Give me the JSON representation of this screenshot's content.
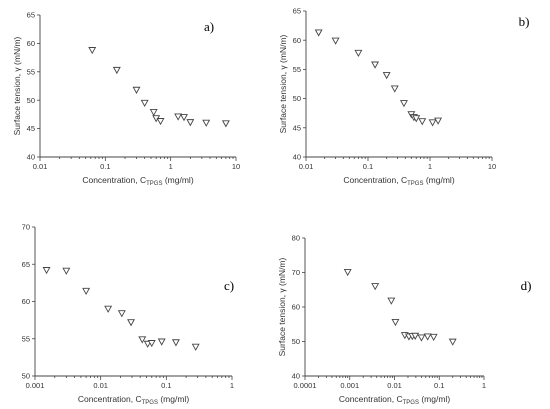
{
  "chart_data": [
    {
      "type": "scatter",
      "panel_label": "a)",
      "xlabel_main": "Concentration, C",
      "xlabel_sub": "TPGS",
      "xlabel_unit": " (mg/ml)",
      "ylabel": "Surface tension, γ (mN/m)",
      "xscale": "log",
      "xlim": [
        0.01,
        10
      ],
      "ylim": [
        40,
        65
      ],
      "xticks": [
        0.01,
        0.1,
        1,
        10
      ],
      "xtick_labels": [
        "0.01",
        "0.1",
        "1",
        "10"
      ],
      "yticks": [
        40,
        45,
        50,
        55,
        60,
        65
      ],
      "ytick_labels": [
        "40",
        "45",
        "50",
        "55",
        "60",
        "65"
      ],
      "x": [
        0.063,
        0.15,
        0.3,
        0.4,
        0.55,
        0.6,
        0.7,
        1.3,
        1.6,
        2.0,
        3.5,
        7.0
      ],
      "y": [
        58.8,
        55.3,
        51.8,
        49.5,
        47.9,
        46.8,
        46.3,
        47.1,
        47.0,
        46.1,
        46.0,
        45.9
      ]
    },
    {
      "type": "scatter",
      "panel_label": "b)",
      "xlabel_main": "Concentration, C",
      "xlabel_sub": "TPGS",
      "xlabel_unit": " (mg/ml)",
      "ylabel": "Surface tension, γ (mN/m)",
      "xscale": "log",
      "xlim": [
        0.01,
        10
      ],
      "ylim": [
        40,
        65
      ],
      "xticks": [
        0.01,
        0.1,
        1,
        10
      ],
      "xtick_labels": [
        "0.01",
        "0.1",
        "1",
        "10"
      ],
      "yticks": [
        40,
        45,
        50,
        55,
        60,
        65
      ],
      "ytick_labels": [
        "40",
        "45",
        "50",
        "55",
        "60",
        "65"
      ],
      "x": [
        0.016,
        0.03,
        0.07,
        0.13,
        0.2,
        0.27,
        0.38,
        0.5,
        0.55,
        0.6,
        0.75,
        1.1,
        1.35
      ],
      "y": [
        61.3,
        59.9,
        57.8,
        55.8,
        54.0,
        51.7,
        49.2,
        47.3,
        46.8,
        46.6,
        46.1,
        45.9,
        46.2
      ]
    },
    {
      "type": "scatter",
      "panel_label": "c)",
      "xlabel_main": "Concentration, C",
      "xlabel_sub": "TPGS",
      "xlabel_unit": " (mg/ml)",
      "ylabel": "",
      "xscale": "log",
      "xlim": [
        0.001,
        1
      ],
      "ylim": [
        50,
        70
      ],
      "xticks": [
        0.001,
        0.01,
        0.1,
        1
      ],
      "xtick_labels": [
        "0.001",
        "0.01",
        "0.1",
        "1"
      ],
      "yticks": [
        50,
        55,
        60,
        65,
        70
      ],
      "ytick_labels": [
        "50",
        "55",
        "60",
        "65",
        "70"
      ],
      "x": [
        0.0015,
        0.003,
        0.006,
        0.013,
        0.021,
        0.029,
        0.043,
        0.052,
        0.06,
        0.085,
        0.14,
        0.28
      ],
      "y": [
        64.2,
        64.1,
        61.4,
        59.0,
        58.4,
        57.2,
        54.9,
        54.3,
        54.4,
        54.6,
        54.5,
        53.9
      ]
    },
    {
      "type": "scatter",
      "panel_label": "d)",
      "xlabel_main": "Concentration, C",
      "xlabel_sub": "TPGS",
      "xlabel_unit": " (mg/ml)",
      "ylabel": "Surface tension, γ (mN/m)",
      "xscale": "log",
      "xlim": [
        0.0001,
        1
      ],
      "ylim": [
        40,
        80
      ],
      "xticks": [
        0.0001,
        0.001,
        0.01,
        0.1,
        1
      ],
      "xtick_labels": [
        "0.0001",
        "0.001",
        "0.01",
        "0.1",
        "1"
      ],
      "yticks": [
        40,
        50,
        60,
        70,
        80
      ],
      "ytick_labels": [
        "40",
        "50",
        "60",
        "70",
        "80"
      ],
      "x": [
        0.0009,
        0.0037,
        0.0085,
        0.0105,
        0.017,
        0.021,
        0.025,
        0.029,
        0.04,
        0.055,
        0.075,
        0.2
      ],
      "y": [
        70.1,
        66.0,
        61.8,
        55.6,
        51.8,
        51.4,
        51.5,
        51.6,
        51.1,
        51.4,
        51.3,
        49.9
      ]
    }
  ]
}
